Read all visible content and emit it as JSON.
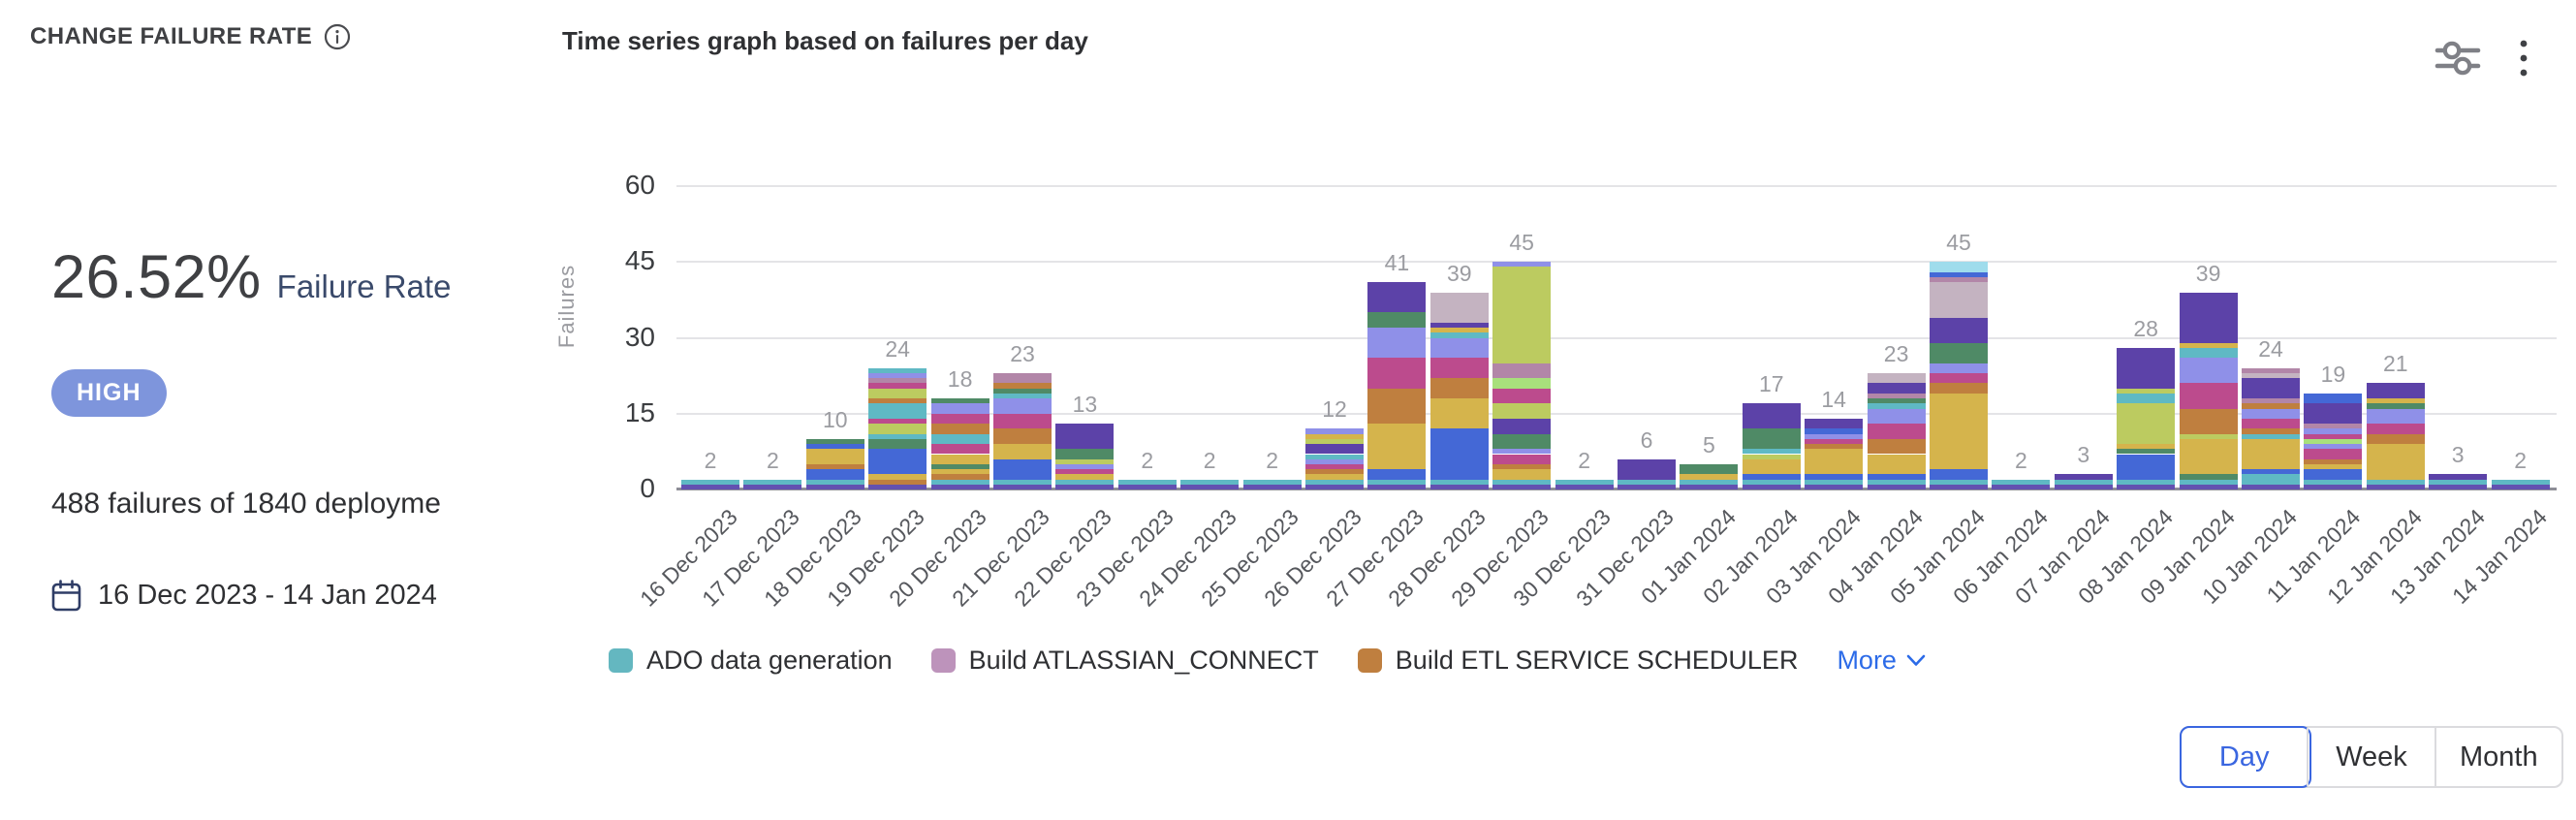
{
  "header": {
    "title": "CHANGE FAILURE RATE",
    "chart_title": "Time series graph based on failures per day"
  },
  "stats": {
    "rate": "26.52%",
    "rate_label": "Failure Rate",
    "severity": "HIGH",
    "summary": "488 failures of 1840 deployme",
    "date_range": "16 Dec 2023 - 14 Jan 2024"
  },
  "chart_data": {
    "type": "bar",
    "stacked": true,
    "title": "Time series graph based on failures per day",
    "xlabel": "",
    "ylabel": "Failures",
    "ylim": [
      0,
      60
    ],
    "yticks": [
      0,
      15,
      30,
      45,
      60
    ],
    "grid": true,
    "legend_position": "bottom",
    "categories": [
      "16 Dec 2023",
      "17 Dec 2023",
      "18 Dec 2023",
      "19 Dec 2023",
      "20 Dec 2023",
      "21 Dec 2023",
      "22 Dec 2023",
      "23 Dec 2023",
      "24 Dec 2023",
      "25 Dec 2023",
      "26 Dec 2023",
      "27 Dec 2023",
      "28 Dec 2023",
      "29 Dec 2023",
      "30 Dec 2023",
      "31 Dec 2023",
      "01 Jan 2024",
      "02 Jan 2024",
      "03 Jan 2024",
      "04 Jan 2024",
      "05 Jan 2024",
      "06 Jan 2024",
      "07 Jan 2024",
      "08 Jan 2024",
      "09 Jan 2024",
      "10 Jan 2024",
      "11 Jan 2024",
      "12 Jan 2024",
      "13 Jan 2024",
      "14 Jan 2024"
    ],
    "totals": [
      2,
      2,
      10,
      24,
      18,
      23,
      13,
      2,
      2,
      2,
      12,
      41,
      39,
      45,
      2,
      6,
      5,
      17,
      14,
      23,
      45,
      2,
      3,
      28,
      39,
      24,
      19,
      21,
      3,
      2
    ],
    "palette": {
      "purple": "#6351b0",
      "violet": "#5c42a8",
      "teal": "#5fb9c4",
      "blue": "#4468d6",
      "gold": "#d5b44c",
      "orange": "#bf7f3f",
      "magenta": "#bc4b8d",
      "periwinkle": "#8f90e8",
      "green": "#4f8a66",
      "lime": "#bccb60",
      "lightgreen": "#a8e07c",
      "mauve": "#b286a8",
      "lavender": "#c4b3c1",
      "lightcyan": "#9fdcec"
    },
    "bars": [
      {
        "date": "16 Dec 2023",
        "total": 2,
        "segments": [
          [
            "purple",
            1
          ],
          [
            "teal",
            1
          ]
        ]
      },
      {
        "date": "17 Dec 2023",
        "total": 2,
        "segments": [
          [
            "purple",
            1
          ],
          [
            "teal",
            1
          ]
        ]
      },
      {
        "date": "18 Dec 2023",
        "total": 10,
        "segments": [
          [
            "purple",
            1
          ],
          [
            "teal",
            1
          ],
          [
            "blue",
            2
          ],
          [
            "orange",
            1
          ],
          [
            "gold",
            3
          ],
          [
            "blue",
            1
          ],
          [
            "green",
            1
          ]
        ]
      },
      {
        "date": "19 Dec 2023",
        "total": 24,
        "segments": [
          [
            "purple",
            1
          ],
          [
            "orange",
            1
          ],
          [
            "gold",
            1
          ],
          [
            "blue",
            5
          ],
          [
            "green",
            2
          ],
          [
            "teal",
            1
          ],
          [
            "lime",
            2
          ],
          [
            "magenta",
            1
          ],
          [
            "teal",
            3
          ],
          [
            "orange",
            1
          ],
          [
            "lime",
            2
          ],
          [
            "magenta",
            1
          ],
          [
            "mauve",
            1
          ],
          [
            "periwinkle",
            1
          ],
          [
            "teal",
            1
          ]
        ]
      },
      {
        "date": "20 Dec 2023",
        "total": 18,
        "segments": [
          [
            "purple",
            1
          ],
          [
            "teal",
            1
          ],
          [
            "orange",
            1
          ],
          [
            "gold",
            1
          ],
          [
            "green",
            1
          ],
          [
            "gold",
            2
          ],
          [
            "magenta",
            2
          ],
          [
            "teal",
            2
          ],
          [
            "orange",
            2
          ],
          [
            "magenta",
            2
          ],
          [
            "periwinkle",
            2
          ],
          [
            "green",
            1
          ]
        ]
      },
      {
        "date": "21 Dec 2023",
        "total": 23,
        "segments": [
          [
            "purple",
            1
          ],
          [
            "teal",
            1
          ],
          [
            "blue",
            4
          ],
          [
            "gold",
            3
          ],
          [
            "orange",
            3
          ],
          [
            "magenta",
            3
          ],
          [
            "periwinkle",
            3
          ],
          [
            "teal",
            1
          ],
          [
            "green",
            1
          ],
          [
            "orange",
            1
          ],
          [
            "mauve",
            2
          ]
        ]
      },
      {
        "date": "22 Dec 2023",
        "total": 13,
        "segments": [
          [
            "purple",
            1
          ],
          [
            "teal",
            1
          ],
          [
            "gold",
            1
          ],
          [
            "magenta",
            1
          ],
          [
            "periwinkle",
            1
          ],
          [
            "lime",
            1
          ],
          [
            "green",
            2
          ],
          [
            "violet",
            5
          ]
        ]
      },
      {
        "date": "23 Dec 2023",
        "total": 2,
        "segments": [
          [
            "purple",
            1
          ],
          [
            "teal",
            1
          ]
        ]
      },
      {
        "date": "24 Dec 2023",
        "total": 2,
        "segments": [
          [
            "purple",
            1
          ],
          [
            "teal",
            1
          ]
        ]
      },
      {
        "date": "25 Dec 2023",
        "total": 2,
        "segments": [
          [
            "purple",
            1
          ],
          [
            "teal",
            1
          ]
        ]
      },
      {
        "date": "26 Dec 2023",
        "total": 12,
        "segments": [
          [
            "purple",
            1
          ],
          [
            "teal",
            1
          ],
          [
            "gold",
            1
          ],
          [
            "orange",
            1
          ],
          [
            "magenta",
            1
          ],
          [
            "periwinkle",
            1
          ],
          [
            "teal",
            1
          ],
          [
            "violet",
            2
          ],
          [
            "lime",
            1
          ],
          [
            "gold",
            1
          ],
          [
            "periwinkle",
            1
          ]
        ]
      },
      {
        "date": "27 Dec 2023",
        "total": 41,
        "segments": [
          [
            "purple",
            1
          ],
          [
            "teal",
            1
          ],
          [
            "blue",
            2
          ],
          [
            "gold",
            9
          ],
          [
            "orange",
            7
          ],
          [
            "magenta",
            6
          ],
          [
            "periwinkle",
            6
          ],
          [
            "green",
            3
          ],
          [
            "violet",
            6
          ]
        ]
      },
      {
        "date": "28 Dec 2023",
        "total": 39,
        "segments": [
          [
            "purple",
            1
          ],
          [
            "teal",
            1
          ],
          [
            "blue",
            10
          ],
          [
            "gold",
            6
          ],
          [
            "orange",
            4
          ],
          [
            "magenta",
            4
          ],
          [
            "periwinkle",
            4
          ],
          [
            "teal",
            1
          ],
          [
            "gold",
            1
          ],
          [
            "violet",
            1
          ],
          [
            "lavender",
            6
          ]
        ]
      },
      {
        "date": "29 Dec 2023",
        "total": 45,
        "segments": [
          [
            "purple",
            1
          ],
          [
            "teal",
            1
          ],
          [
            "gold",
            2
          ],
          [
            "orange",
            1
          ],
          [
            "magenta",
            2
          ],
          [
            "periwinkle",
            1
          ],
          [
            "green",
            3
          ],
          [
            "violet",
            3
          ],
          [
            "lime",
            3
          ],
          [
            "magenta",
            3
          ],
          [
            "lightgreen",
            2
          ],
          [
            "mauve",
            3
          ],
          [
            "lime",
            19
          ],
          [
            "periwinkle",
            1
          ]
        ]
      },
      {
        "date": "30 Dec 2023",
        "total": 2,
        "segments": [
          [
            "purple",
            1
          ],
          [
            "teal",
            1
          ]
        ]
      },
      {
        "date": "31 Dec 2023",
        "total": 6,
        "segments": [
          [
            "purple",
            1
          ],
          [
            "teal",
            1
          ],
          [
            "violet",
            4
          ]
        ]
      },
      {
        "date": "01 Jan 2024",
        "total": 5,
        "segments": [
          [
            "purple",
            1
          ],
          [
            "teal",
            1
          ],
          [
            "gold",
            1
          ],
          [
            "green",
            2
          ]
        ]
      },
      {
        "date": "02 Jan 2024",
        "total": 17,
        "segments": [
          [
            "purple",
            1
          ],
          [
            "teal",
            1
          ],
          [
            "blue",
            1
          ],
          [
            "gold",
            3
          ],
          [
            "lime",
            1
          ],
          [
            "teal",
            1
          ],
          [
            "green",
            4
          ],
          [
            "violet",
            5
          ]
        ]
      },
      {
        "date": "03 Jan 2024",
        "total": 14,
        "segments": [
          [
            "purple",
            1
          ],
          [
            "teal",
            1
          ],
          [
            "blue",
            1
          ],
          [
            "gold",
            5
          ],
          [
            "orange",
            1
          ],
          [
            "magenta",
            1
          ],
          [
            "periwinkle",
            1
          ],
          [
            "blue",
            1
          ],
          [
            "violet",
            2
          ]
        ]
      },
      {
        "date": "04 Jan 2024",
        "total": 23,
        "segments": [
          [
            "purple",
            1
          ],
          [
            "teal",
            1
          ],
          [
            "blue",
            1
          ],
          [
            "gold",
            4
          ],
          [
            "orange",
            3
          ],
          [
            "magenta",
            3
          ],
          [
            "periwinkle",
            3
          ],
          [
            "teal",
            1
          ],
          [
            "green",
            1
          ],
          [
            "mauve",
            1
          ],
          [
            "violet",
            2
          ],
          [
            "lavender",
            2
          ]
        ]
      },
      {
        "date": "05 Jan 2024",
        "total": 45,
        "segments": [
          [
            "purple",
            1
          ],
          [
            "teal",
            1
          ],
          [
            "blue",
            2
          ],
          [
            "gold",
            15
          ],
          [
            "orange",
            2
          ],
          [
            "magenta",
            2
          ],
          [
            "periwinkle",
            2
          ],
          [
            "green",
            4
          ],
          [
            "violet",
            5
          ],
          [
            "lavender",
            7
          ],
          [
            "mauve",
            1
          ],
          [
            "blue",
            1
          ],
          [
            "lightcyan",
            2
          ]
        ]
      },
      {
        "date": "06 Jan 2024",
        "total": 2,
        "segments": [
          [
            "purple",
            1
          ],
          [
            "teal",
            1
          ]
        ]
      },
      {
        "date": "07 Jan 2024",
        "total": 3,
        "segments": [
          [
            "purple",
            1
          ],
          [
            "teal",
            1
          ],
          [
            "violet",
            1
          ]
        ]
      },
      {
        "date": "08 Jan 2024",
        "total": 28,
        "segments": [
          [
            "purple",
            1
          ],
          [
            "teal",
            1
          ],
          [
            "blue",
            2
          ],
          [
            "blue",
            3
          ],
          [
            "green",
            1
          ],
          [
            "gold",
            1
          ],
          [
            "lime",
            8
          ],
          [
            "teal",
            2
          ],
          [
            "lime",
            1
          ],
          [
            "violet",
            8
          ]
        ]
      },
      {
        "date": "09 Jan 2024",
        "total": 39,
        "segments": [
          [
            "purple",
            1
          ],
          [
            "teal",
            1
          ],
          [
            "green",
            1
          ],
          [
            "gold",
            7
          ],
          [
            "lime",
            1
          ],
          [
            "orange",
            5
          ],
          [
            "magenta",
            5
          ],
          [
            "periwinkle",
            5
          ],
          [
            "teal",
            2
          ],
          [
            "gold",
            1
          ],
          [
            "violet",
            10
          ]
        ]
      },
      {
        "date": "10 Jan 2024",
        "total": 24,
        "segments": [
          [
            "purple",
            1
          ],
          [
            "teal",
            2
          ],
          [
            "blue",
            1
          ],
          [
            "gold",
            6
          ],
          [
            "teal",
            1
          ],
          [
            "orange",
            1
          ],
          [
            "magenta",
            2
          ],
          [
            "periwinkle",
            2
          ],
          [
            "orange",
            1
          ],
          [
            "mauve",
            1
          ],
          [
            "violet",
            4
          ],
          [
            "lavender",
            1
          ],
          [
            "mauve",
            1
          ]
        ]
      },
      {
        "date": "11 Jan 2024",
        "total": 19,
        "segments": [
          [
            "purple",
            1
          ],
          [
            "teal",
            1
          ],
          [
            "blue",
            2
          ],
          [
            "gold",
            1
          ],
          [
            "orange",
            1
          ],
          [
            "magenta",
            2
          ],
          [
            "periwinkle",
            1
          ],
          [
            "lightgreen",
            1
          ],
          [
            "magenta",
            1
          ],
          [
            "periwinkle",
            1
          ],
          [
            "mauve",
            1
          ],
          [
            "violet",
            4
          ],
          [
            "blue",
            2
          ]
        ]
      },
      {
        "date": "12 Jan 2024",
        "total": 21,
        "segments": [
          [
            "purple",
            1
          ],
          [
            "teal",
            1
          ],
          [
            "gold",
            7
          ],
          [
            "orange",
            2
          ],
          [
            "magenta",
            2
          ],
          [
            "periwinkle",
            3
          ],
          [
            "green",
            1
          ],
          [
            "gold",
            1
          ],
          [
            "violet",
            3
          ]
        ]
      },
      {
        "date": "13 Jan 2024",
        "total": 3,
        "segments": [
          [
            "purple",
            1
          ],
          [
            "teal",
            1
          ],
          [
            "violet",
            1
          ]
        ]
      },
      {
        "date": "14 Jan 2024",
        "total": 2,
        "segments": [
          [
            "purple",
            1
          ],
          [
            "teal",
            1
          ]
        ]
      }
    ]
  },
  "legend": {
    "items": [
      {
        "label": "ADO data generation",
        "color": "#64b7c0"
      },
      {
        "label": "Build ATLASSIAN_CONNECT",
        "color": "#bd93bb"
      },
      {
        "label": "Build ETL SERVICE SCHEDULER",
        "color": "#bf7f3f"
      }
    ],
    "more_label": "More"
  },
  "controls": {
    "granularity": [
      {
        "label": "Day",
        "selected": true
      },
      {
        "label": "Week",
        "selected": false
      },
      {
        "label": "Month",
        "selected": false
      }
    ]
  }
}
